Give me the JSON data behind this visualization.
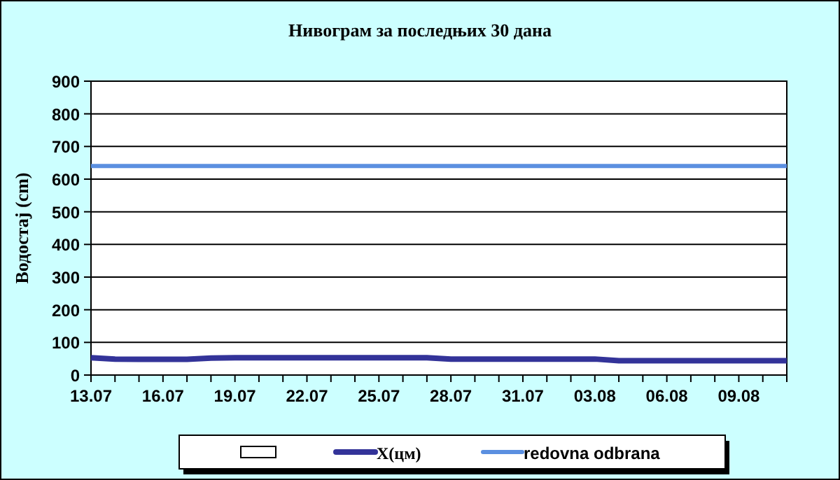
{
  "chart_data": {
    "type": "line",
    "title": "Нивограм за последњих 30 дана",
    "ylabel": "Водостај (cm)",
    "categories": [
      "13.07",
      null,
      null,
      "16.07",
      null,
      null,
      "19.07",
      null,
      null,
      "22.07",
      null,
      null,
      "25.07",
      null,
      null,
      "28.07",
      null,
      null,
      "31.07",
      null,
      null,
      "03.08",
      null,
      null,
      "06.08",
      null,
      null,
      "09.08",
      null,
      null
    ],
    "series": [
      {
        "name": "X(цм)",
        "color": "#333399",
        "values": [
          53,
          49,
          48,
          48,
          48,
          52,
          53,
          53,
          53,
          53,
          53,
          53,
          53,
          53,
          53,
          49,
          49,
          49,
          49,
          49,
          49,
          49,
          44,
          44,
          44,
          44,
          44,
          44,
          44,
          44
        ]
      },
      {
        "name": "redovna odbrana",
        "color": "#5b8fe0",
        "values": [
          640,
          640,
          640,
          640,
          640,
          640,
          640,
          640,
          640,
          640,
          640,
          640,
          640,
          640,
          640,
          640,
          640,
          640,
          640,
          640,
          640,
          640,
          640,
          640,
          640,
          640,
          640,
          640,
          640,
          640
        ]
      }
    ],
    "ylim": [
      0,
      900
    ],
    "yticks": [
      0,
      100,
      200,
      300,
      400,
      500,
      600,
      700,
      800,
      900
    ],
    "grid": "y",
    "legend": "bottom",
    "marker": "none",
    "line_style": "solid"
  }
}
